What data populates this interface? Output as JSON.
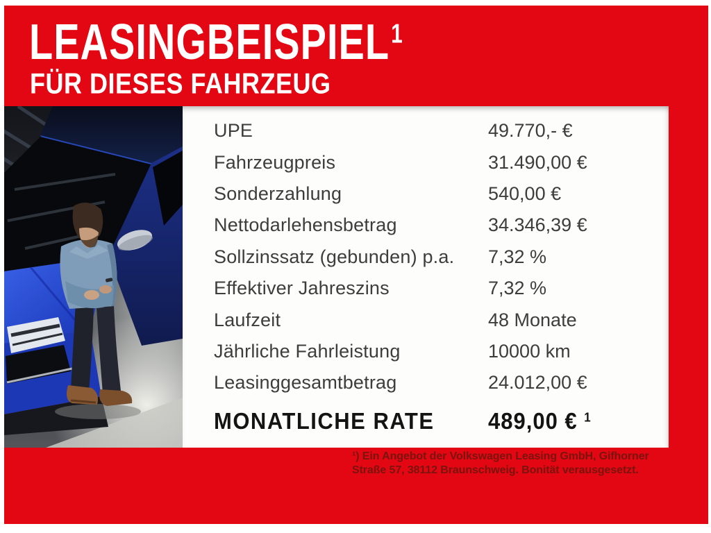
{
  "header": {
    "title_line1": "LEASINGBEISPIEL",
    "title_sup": "1",
    "title_line2": "FÜR DIESES FAHRZEUG"
  },
  "table": {
    "rows": [
      {
        "label": "UPE",
        "value": "49.770,- €"
      },
      {
        "label": "Fahrzeugpreis",
        "value": "31.490,00 €"
      },
      {
        "label": "Sonderzahlung",
        "value": "540,00 €"
      },
      {
        "label": "Nettodarlehensbetrag",
        "value": "34.346,39 €"
      },
      {
        "label": "Sollzinssatz (gebunden) p.a.",
        "value": "7,32 %"
      },
      {
        "label": "Effektiver Jahreszins",
        "value": "7,32 %"
      },
      {
        "label": "Laufzeit",
        "value": "48 Monate"
      },
      {
        "label": "Jährliche Fahrleistung",
        "value": "10000 km"
      },
      {
        "label": "Leasinggesamtbetrag",
        "value": "24.012,00 €"
      }
    ],
    "rate": {
      "label": "MONATLICHE RATE",
      "value": "489,00 €",
      "sup": "1"
    }
  },
  "footnote": {
    "line1": "¹) Ein Angebot der Volkswagen Leasing GmbH, Gifhorner",
    "line2": "Straße 57, 38112 Braunschweig. Bonität verausgesetzt."
  },
  "photo": {
    "description": "man in denim shirt leaning on blue Volkswagen, seen from above"
  },
  "colors": {
    "red": "#e30613",
    "footnote_text": "#7a140e",
    "table_text": "#3d3d3d",
    "rate_text": "#141414"
  }
}
